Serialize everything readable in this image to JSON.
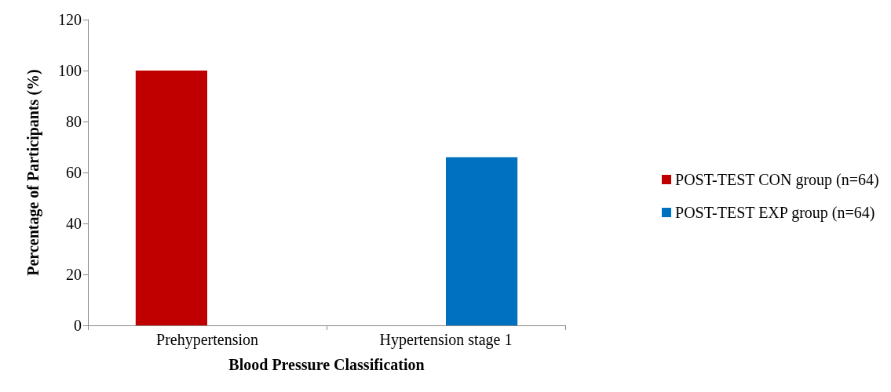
{
  "chart_data": {
    "type": "bar",
    "xlabel": "Blood Pressure Classification",
    "ylabel": "Percentage of Participants (%)",
    "categories": [
      "Prehypertension",
      "Hypertension stage 1"
    ],
    "series": [
      {
        "name": "POST-TEST CON group (n=64)",
        "color": "#c00000",
        "values": [
          100,
          0
        ]
      },
      {
        "name": "POST-TEST EXP group (n=64)",
        "color": "#0070c0",
        "values": [
          0,
          66
        ]
      }
    ],
    "ylim": [
      0,
      120
    ],
    "yticks": [
      0,
      20,
      40,
      60,
      80,
      100,
      120
    ],
    "grid": false,
    "legend": "right"
  }
}
